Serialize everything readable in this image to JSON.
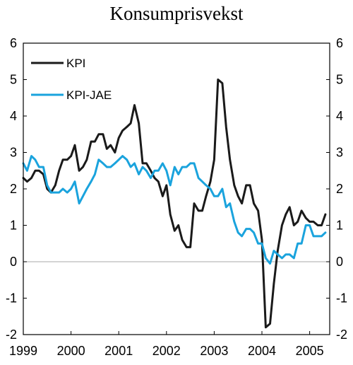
{
  "chart_data": {
    "type": "line",
    "title": "Konsumprisvekst",
    "xlabel": "",
    "ylabel": "",
    "xlim": [
      1999.0,
      2005.42
    ],
    "ylim": [
      -2,
      6
    ],
    "yticks": [
      "-2",
      "-1",
      "0",
      "1",
      "2",
      "3",
      "4",
      "5",
      "6"
    ],
    "xticks": [
      "1999",
      "2000",
      "2001",
      "2002",
      "2003",
      "2004",
      "2005"
    ],
    "grid": false,
    "zero_line": true,
    "legend_position": "top-left",
    "series": [
      {
        "name": "KPI",
        "color": "#1a1a1a",
        "points": [
          [
            1999.0,
            2.3
          ],
          [
            1999.08,
            2.2
          ],
          [
            1999.17,
            2.3
          ],
          [
            1999.25,
            2.5
          ],
          [
            1999.33,
            2.5
          ],
          [
            1999.42,
            2.4
          ],
          [
            1999.5,
            2.0
          ],
          [
            1999.58,
            1.9
          ],
          [
            1999.67,
            2.1
          ],
          [
            1999.75,
            2.5
          ],
          [
            1999.83,
            2.8
          ],
          [
            1999.92,
            2.8
          ],
          [
            2000.0,
            2.9
          ],
          [
            2000.08,
            3.2
          ],
          [
            2000.17,
            2.5
          ],
          [
            2000.25,
            2.6
          ],
          [
            2000.33,
            2.8
          ],
          [
            2000.42,
            3.3
          ],
          [
            2000.5,
            3.3
          ],
          [
            2000.58,
            3.5
          ],
          [
            2000.67,
            3.5
          ],
          [
            2000.75,
            3.1
          ],
          [
            2000.83,
            3.2
          ],
          [
            2000.92,
            3.0
          ],
          [
            2001.0,
            3.4
          ],
          [
            2001.08,
            3.6
          ],
          [
            2001.17,
            3.7
          ],
          [
            2001.25,
            3.8
          ],
          [
            2001.33,
            4.3
          ],
          [
            2001.42,
            3.8
          ],
          [
            2001.5,
            2.7
          ],
          [
            2001.58,
            2.7
          ],
          [
            2001.67,
            2.5
          ],
          [
            2001.75,
            2.3
          ],
          [
            2001.83,
            2.2
          ],
          [
            2001.92,
            1.8
          ],
          [
            2002.0,
            2.1
          ],
          [
            2002.08,
            1.3
          ],
          [
            2002.17,
            0.85
          ],
          [
            2002.25,
            1.0
          ],
          [
            2002.33,
            0.6
          ],
          [
            2002.42,
            0.4
          ],
          [
            2002.5,
            0.4
          ],
          [
            2002.58,
            1.6
          ],
          [
            2002.67,
            1.4
          ],
          [
            2002.75,
            1.4
          ],
          [
            2002.83,
            1.8
          ],
          [
            2002.92,
            2.2
          ],
          [
            2003.0,
            2.8
          ],
          [
            2003.08,
            5.0
          ],
          [
            2003.17,
            4.9
          ],
          [
            2003.25,
            3.7
          ],
          [
            2003.33,
            2.8
          ],
          [
            2003.42,
            2.1
          ],
          [
            2003.5,
            1.8
          ],
          [
            2003.58,
            1.6
          ],
          [
            2003.67,
            2.1
          ],
          [
            2003.75,
            2.1
          ],
          [
            2003.83,
            1.6
          ],
          [
            2003.92,
            1.4
          ],
          [
            2004.0,
            0.6
          ],
          [
            2004.08,
            -1.8
          ],
          [
            2004.17,
            -1.7
          ],
          [
            2004.25,
            -0.6
          ],
          [
            2004.33,
            0.3
          ],
          [
            2004.42,
            1.0
          ],
          [
            2004.5,
            1.3
          ],
          [
            2004.58,
            1.5
          ],
          [
            2004.67,
            1.0
          ],
          [
            2004.75,
            1.1
          ],
          [
            2004.83,
            1.4
          ],
          [
            2004.92,
            1.2
          ],
          [
            2005.0,
            1.1
          ],
          [
            2005.08,
            1.1
          ],
          [
            2005.17,
            1.0
          ],
          [
            2005.25,
            1.0
          ],
          [
            2005.33,
            1.3
          ]
        ]
      },
      {
        "name": "KPI-JAE",
        "color": "#1aa3dd",
        "points": [
          [
            1999.0,
            2.7
          ],
          [
            1999.08,
            2.5
          ],
          [
            1999.17,
            2.9
          ],
          [
            1999.25,
            2.8
          ],
          [
            1999.33,
            2.6
          ],
          [
            1999.42,
            2.6
          ],
          [
            1999.5,
            2.1
          ],
          [
            1999.58,
            1.9
          ],
          [
            1999.67,
            1.9
          ],
          [
            1999.75,
            1.9
          ],
          [
            1999.83,
            2.0
          ],
          [
            1999.92,
            1.9
          ],
          [
            2000.0,
            2.0
          ],
          [
            2000.08,
            2.2
          ],
          [
            2000.17,
            1.6
          ],
          [
            2000.25,
            1.8
          ],
          [
            2000.33,
            2.0
          ],
          [
            2000.42,
            2.2
          ],
          [
            2000.5,
            2.4
          ],
          [
            2000.58,
            2.8
          ],
          [
            2000.67,
            2.7
          ],
          [
            2000.75,
            2.6
          ],
          [
            2000.83,
            2.6
          ],
          [
            2000.92,
            2.7
          ],
          [
            2001.0,
            2.8
          ],
          [
            2001.08,
            2.9
          ],
          [
            2001.17,
            2.8
          ],
          [
            2001.25,
            2.6
          ],
          [
            2001.33,
            2.7
          ],
          [
            2001.42,
            2.4
          ],
          [
            2001.5,
            2.6
          ],
          [
            2001.58,
            2.5
          ],
          [
            2001.67,
            2.3
          ],
          [
            2001.75,
            2.5
          ],
          [
            2001.83,
            2.5
          ],
          [
            2001.92,
            2.7
          ],
          [
            2002.0,
            2.5
          ],
          [
            2002.08,
            2.1
          ],
          [
            2002.17,
            2.6
          ],
          [
            2002.25,
            2.4
          ],
          [
            2002.33,
            2.6
          ],
          [
            2002.42,
            2.6
          ],
          [
            2002.5,
            2.7
          ],
          [
            2002.58,
            2.7
          ],
          [
            2002.67,
            2.3
          ],
          [
            2002.75,
            2.2
          ],
          [
            2002.83,
            2.1
          ],
          [
            2002.92,
            2.0
          ],
          [
            2003.0,
            1.8
          ],
          [
            2003.08,
            1.8
          ],
          [
            2003.17,
            2.0
          ],
          [
            2003.25,
            1.5
          ],
          [
            2003.33,
            1.6
          ],
          [
            2003.42,
            1.1
          ],
          [
            2003.5,
            0.8
          ],
          [
            2003.58,
            0.7
          ],
          [
            2003.67,
            0.9
          ],
          [
            2003.75,
            0.9
          ],
          [
            2003.83,
            0.8
          ],
          [
            2003.92,
            0.5
          ],
          [
            2004.0,
            0.5
          ],
          [
            2004.08,
            0.1
          ],
          [
            2004.17,
            -0.05
          ],
          [
            2004.25,
            0.3
          ],
          [
            2004.33,
            0.2
          ],
          [
            2004.42,
            0.1
          ],
          [
            2004.5,
            0.2
          ],
          [
            2004.58,
            0.2
          ],
          [
            2004.67,
            0.1
          ],
          [
            2004.75,
            0.5
          ],
          [
            2004.83,
            0.5
          ],
          [
            2004.92,
            1.0
          ],
          [
            2005.0,
            1.0
          ],
          [
            2005.08,
            0.7
          ],
          [
            2005.17,
            0.7
          ],
          [
            2005.25,
            0.7
          ],
          [
            2005.33,
            0.8
          ]
        ]
      }
    ]
  }
}
